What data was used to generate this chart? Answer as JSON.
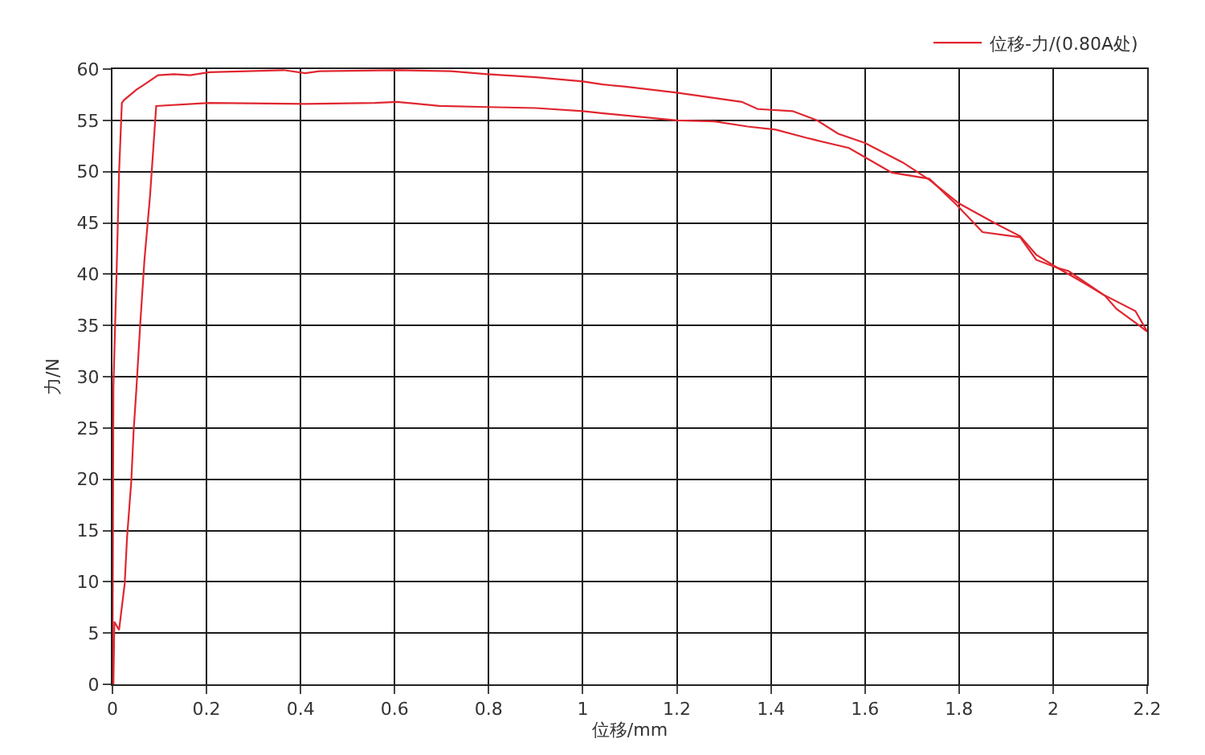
{
  "chart_data": {
    "type": "line",
    "xlabel": "位移/mm",
    "ylabel": "力/N",
    "xlim": [
      0,
      2.2
    ],
    "ylim": [
      0,
      60
    ],
    "xticks": [
      0,
      0.2,
      0.4,
      0.6,
      0.8,
      1,
      1.2,
      1.4,
      1.6,
      1.8,
      2,
      2.2
    ],
    "yticks": [
      0,
      5,
      10,
      15,
      20,
      25,
      30,
      35,
      40,
      45,
      50,
      55,
      60
    ],
    "grid": true,
    "legend": "top right",
    "series": [
      {
        "name": "位移-力/(0.80A处)",
        "color": "#e0262f",
        "x": [
          0,
          0.002,
          0.009,
          0.014,
          0.02,
          0.025,
          0.051,
          0.068,
          0.097,
          0.131,
          0.165,
          0.207,
          0.364,
          0.41,
          0.44,
          0.606,
          0.72,
          0.797,
          0.9,
          1.0,
          1.042,
          1.087,
          1.2,
          1.338,
          1.372,
          1.446,
          1.498,
          1.543,
          1.6,
          1.68,
          1.737,
          1.8,
          1.879,
          1.93,
          1.964,
          2.01,
          2.033,
          2.107,
          2.175,
          2.2
        ],
        "values": [
          0,
          29,
          40.5,
          49.9,
          56.7,
          57.0,
          58.0,
          58.5,
          59.4,
          59.5,
          59.4,
          59.7,
          59.9,
          59.6,
          59.8,
          59.9,
          59.8,
          59.5,
          59.2,
          58.8,
          58.5,
          58.3,
          57.7,
          56.8,
          56.1,
          55.9,
          55.0,
          53.7,
          52.8,
          50.9,
          49.2,
          46.9,
          44.9,
          43.7,
          41.9,
          40.6,
          40.3,
          38.0,
          36.4,
          34.4
        ]
      },
      {
        "color": "#e0262f",
        "x": [
          0.002,
          0.004,
          0.014,
          0.026,
          0.031,
          0.04,
          0.045,
          0.051,
          0.059,
          0.068,
          0.08,
          0.093,
          0.207,
          0.41,
          0.558,
          0.605,
          0.695,
          0.797,
          0.9,
          1.0,
          1.04,
          1.2,
          1.28,
          1.35,
          1.41,
          1.475,
          1.566,
          1.6,
          1.657,
          1.737,
          1.794,
          1.85,
          1.93,
          1.964,
          2.01,
          2.067,
          2.11,
          2.135,
          2.18,
          2.2
        ],
        "values": [
          0,
          6.1,
          5.3,
          9.8,
          14.3,
          19.8,
          24.7,
          28.9,
          35.1,
          41.4,
          47.7,
          56.4,
          56.7,
          56.6,
          56.7,
          56.8,
          56.4,
          56.3,
          56.2,
          55.9,
          55.7,
          55.0,
          54.9,
          54.4,
          54.1,
          53.3,
          52.3,
          51.4,
          49.9,
          49.3,
          46.8,
          44.1,
          43.6,
          41.4,
          40.6,
          39.1,
          37.9,
          36.6,
          35.1,
          34.4
        ]
      }
    ]
  }
}
